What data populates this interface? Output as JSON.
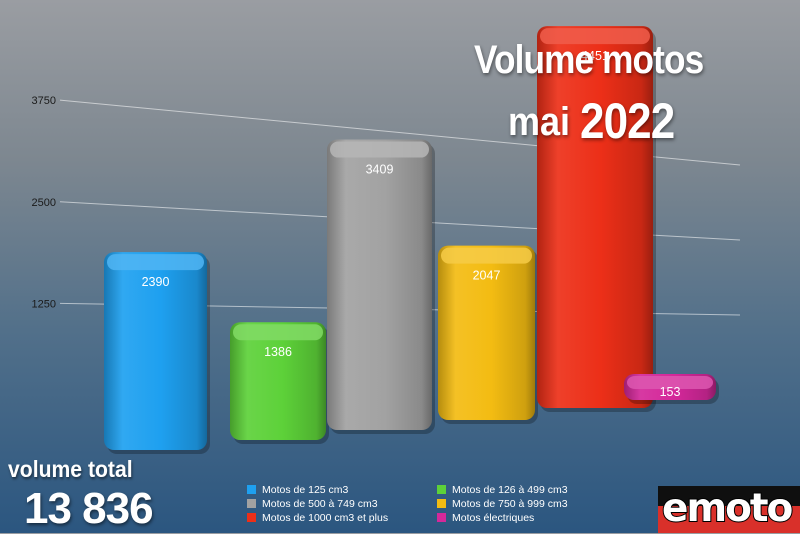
{
  "title": {
    "line1": "Volume motos",
    "line2_month": "mai",
    "line2_year": "2022"
  },
  "total": {
    "label": "volume total",
    "value": "13 836"
  },
  "logo": {
    "text": "emoto",
    "colors": {
      "top": "#0f0f0f",
      "bottom": "#d9302a"
    }
  },
  "chart_data": {
    "type": "bar",
    "title": "Volume motos mai 2022",
    "xlabel": "",
    "ylabel": "",
    "ylim": [
      0,
      4500
    ],
    "yticks": [
      1250,
      2500,
      3750
    ],
    "grid": true,
    "legend_position": "bottom",
    "categories": [
      "Motos de 125 cm3",
      "Motos de 126 à 499 cm3",
      "Motos de 500 à 749 cm3",
      "Motos de 750 à 999 cm3",
      "Motos de 1000 cm3 et plus",
      "Motos électriques"
    ],
    "values": [
      2390,
      1386,
      3409,
      2047,
      4451,
      153
    ],
    "colors": [
      "#1ea0f0",
      "#5dd139",
      "#a2a2a2",
      "#f3bc12",
      "#ec2f18",
      "#d4289a"
    ]
  }
}
